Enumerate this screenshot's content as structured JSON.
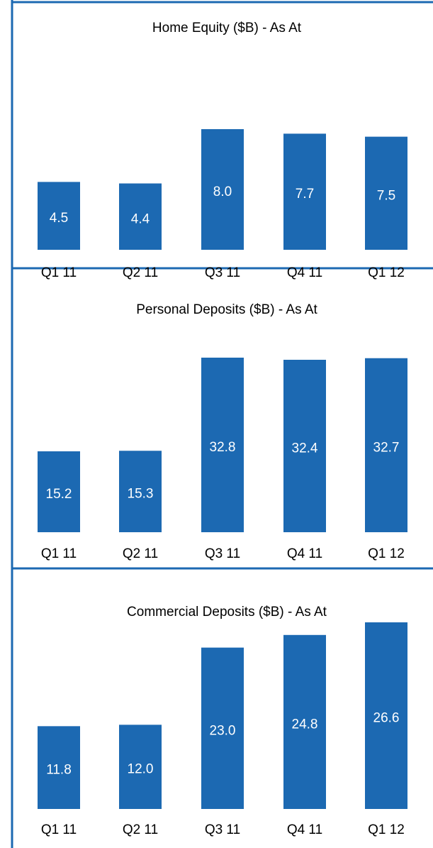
{
  "chart_data": [
    {
      "type": "bar",
      "title": "Home Equity ($B) - As At",
      "categories": [
        "Q1 11",
        "Q2 11",
        "Q3 11",
        "Q4 11",
        "Q1 12"
      ],
      "values": [
        4.5,
        4.4,
        8.0,
        7.7,
        7.5
      ],
      "value_labels": [
        "4.5",
        "4.4",
        "8.0",
        "7.7",
        "7.5"
      ],
      "color": "#1c69b2"
    },
    {
      "type": "bar",
      "title": "Personal Deposits ($B) - As At",
      "categories": [
        "Q1 11",
        "Q2 11",
        "Q3 11",
        "Q4 11",
        "Q1 12"
      ],
      "values": [
        15.2,
        15.3,
        32.8,
        32.4,
        32.7
      ],
      "color": "#1c69b2"
    },
    {
      "type": "bar",
      "title": "Commercial Deposits ($B) - As At",
      "categories": [
        "Q1 11",
        "Q2 11",
        "Q3 11",
        "Q4 11",
        "Q1 12"
      ],
      "values": [
        11.8,
        12.0,
        23.0,
        24.8,
        26.6
      ],
      "value_labels": [
        "11.8",
        "12.0",
        "23.0",
        "24.8",
        "26.6"
      ],
      "color": "#1c69b2"
    }
  ]
}
